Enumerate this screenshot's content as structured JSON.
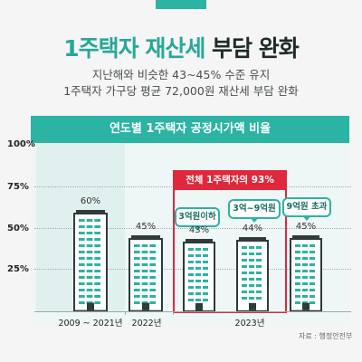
{
  "header": {
    "title_a": "1주택자 재산세",
    "title_b": "부담 완화",
    "subtitle_1": "지난해와 비슷한 43~45% 수준 유지",
    "subtitle_2": "1주택자 가구당 평균 72,000원 재산세 부담 완화"
  },
  "chart_data": {
    "type": "bar",
    "title": "연도별 1주택자 공정시가액 비율",
    "categories": [
      "2009 ~ 2021년",
      "2022년",
      "3억원이하",
      "3억~9억원",
      "9억원 초과"
    ],
    "values": [
      60,
      45,
      43,
      44,
      45
    ],
    "value_labels": [
      "60%",
      "45%",
      "43%",
      "44%",
      "45%"
    ],
    "y_ticks": [
      "100%",
      "75%",
      "50%",
      "25%"
    ],
    "ylim": [
      0,
      100
    ],
    "group_label": "2023년",
    "highlight_label": "전체 1주택자의 93%",
    "colors": {
      "accent": "#2bb3a3",
      "highlight": "#e0283c",
      "building": "#2f3a3a",
      "window": "#2bb3a3"
    }
  },
  "source": "자료 : 행정안전부"
}
